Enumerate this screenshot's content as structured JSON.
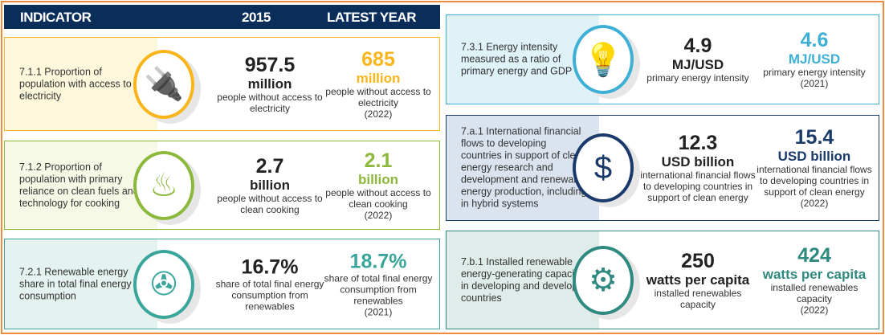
{
  "header": {
    "indicator": "INDICATOR",
    "year2015": "2015",
    "latest": "LATEST YEAR"
  },
  "rows": [
    {
      "label": "7.1.1 Proportion of population with access to electricity",
      "icon": "plug-icon",
      "color": "#f9b51a",
      "bg": "#fdf8dc",
      "v2015": {
        "num": "957.5",
        "unit": "million",
        "desc": "people without access to electricity"
      },
      "latest": {
        "num": "685",
        "unit": "million",
        "desc": "people without access to electricity",
        "year": "(2022)"
      }
    },
    {
      "label": "7.1.2 Proportion of population with primary reliance on clean fuels and technology for cooking",
      "icon": "cooking-pot-icon",
      "color": "#8cb83c",
      "bg": "#f5f9e6",
      "v2015": {
        "num": "2.7",
        "unit": "billion",
        "desc": "people without access to clean cooking"
      },
      "latest": {
        "num": "2.1",
        "unit": "billion",
        "desc": "people without access to clean cooking",
        "year": "(2022)"
      }
    },
    {
      "label": "7.2.1 Renewable energy share in total final energy consumption",
      "icon": "wind-solar-icon",
      "color": "#3aa59a",
      "bg": "#e4f2f0",
      "v2015": {
        "num": "16.7%",
        "unit": "",
        "desc": "share of total final energy consumption from renewables"
      },
      "latest": {
        "num": "18.7%",
        "unit": "",
        "desc": "share of total final energy consumption from renewables",
        "year": "(2021)"
      }
    },
    {
      "label": "7.3.1 Energy intensity measured as a ratio of primary energy and GDP",
      "icon": "light-bulb-icon",
      "color": "#3eb0d5",
      "bg": "#dff2f8",
      "v2015": {
        "num": "4.9",
        "unit": "MJ/USD",
        "desc": "primary energy intensity"
      },
      "latest": {
        "num": "4.6",
        "unit": "MJ/USD",
        "desc": "primary energy intensity",
        "year": "(2021)"
      }
    },
    {
      "label": "7.a.1 International financial flows to developing countries in support of clean energy research and development and renewable energy production, including in hybrid systems",
      "icon": "money-gear-icon",
      "color": "#1a3a6b",
      "bg": "#dbe3ef",
      "v2015": {
        "num": "12.3",
        "unit": "USD billion",
        "desc": "international financial flows to developing countries in support of clean energy"
      },
      "latest": {
        "num": "15.4",
        "unit": "USD billion",
        "desc": "international financial flows to developing countries in support of clean energy",
        "year": "(2022)"
      }
    },
    {
      "label": "7.b.1 Installed renewable energy-generating capacity in developing and developed countries",
      "icon": "renewable-gear-icon",
      "color": "#2f8a80",
      "bg": "#e0ecea",
      "v2015": {
        "num": "250",
        "unit": "watts per capita",
        "desc": "installed renewables capacity"
      },
      "latest": {
        "num": "424",
        "unit": "watts per capita",
        "desc": "installed renewables capacity",
        "year": "(2022)"
      }
    }
  ]
}
